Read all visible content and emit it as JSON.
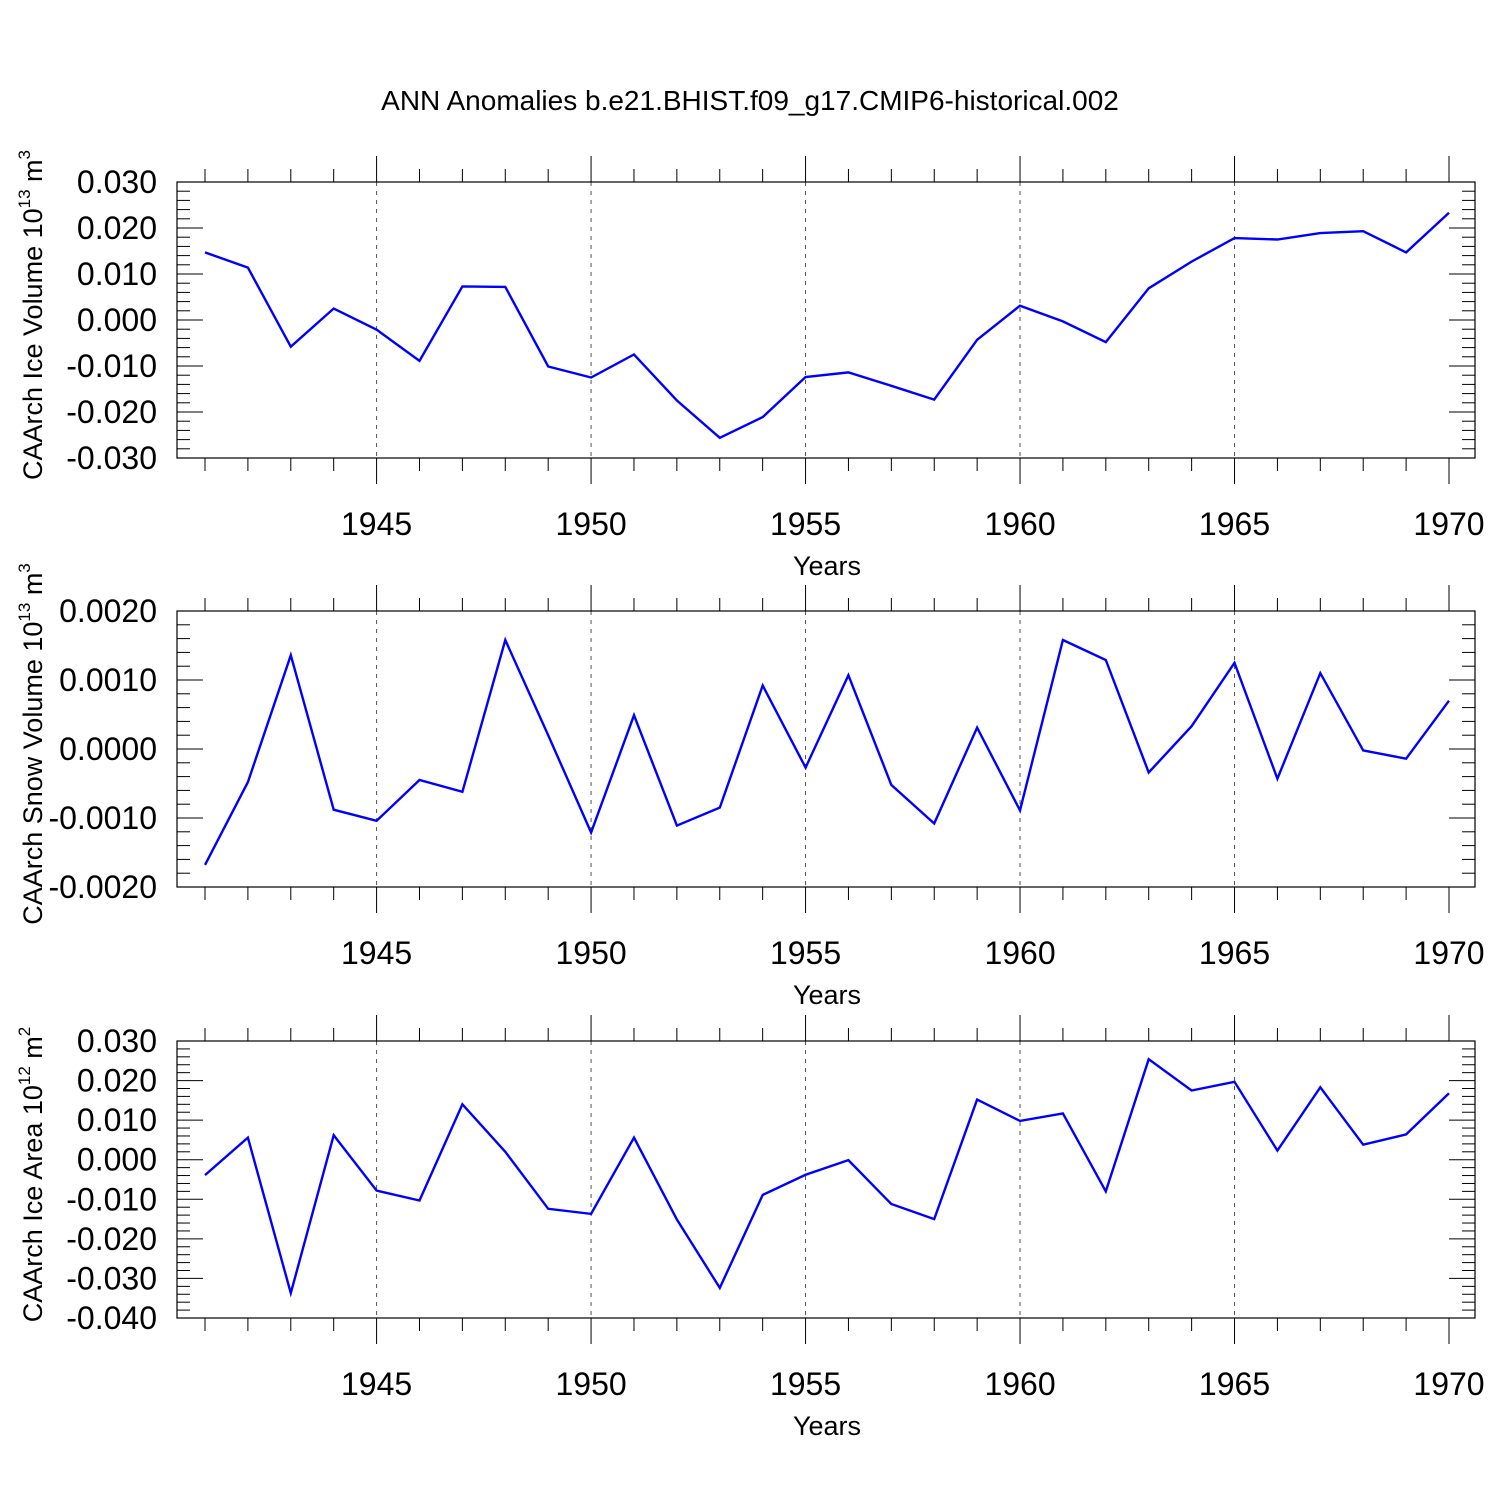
{
  "title": "ANN Anomalies b.e21.BHIST.f09_g17.CMIP6-historical.002",
  "colors": {
    "line": "#0000ff",
    "axis": "#000000",
    "grid": "#555555"
  },
  "chart_data": [
    {
      "type": "line",
      "name": "ice-volume",
      "ylabel_main": "CAArch Ice Volume 10",
      "ylabel_exp": "13",
      "ylabel_unit": " m",
      "ylabel_unit_exp": "3",
      "xlabel": "Years",
      "xlim": [
        1941,
        1970
      ],
      "ylim": [
        -0.03,
        0.03
      ],
      "yticks": [
        -0.03,
        -0.02,
        -0.01,
        0.0,
        0.01,
        0.02,
        0.03
      ],
      "ytick_labels": [
        "-0.030",
        "-0.020",
        "-0.010",
        "0.000",
        "0.010",
        "0.020",
        "0.030"
      ],
      "xticks": [
        1945,
        1950,
        1955,
        1960,
        1965,
        1970
      ],
      "xtick_labels": [
        "1945",
        "1950",
        "1955",
        "1960",
        "1965",
        "1970"
      ],
      "grid": "vertical dashed at major x ticks",
      "x": [
        1941,
        1942,
        1943,
        1944,
        1945,
        1946,
        1947,
        1948,
        1949,
        1950,
        1951,
        1952,
        1953,
        1954,
        1955,
        1956,
        1957,
        1958,
        1959,
        1960,
        1961,
        1962,
        1963,
        1964,
        1965,
        1966,
        1967,
        1968,
        1969,
        1970
      ],
      "values": [
        0.0147,
        0.0114,
        -0.0058,
        0.0025,
        -0.0021,
        -0.0089,
        0.0073,
        0.0072,
        -0.0101,
        -0.0125,
        -0.0075,
        -0.0175,
        -0.0256,
        -0.0211,
        -0.0124,
        -0.0114,
        -0.0143,
        -0.0173,
        -0.0043,
        0.0031,
        -0.0003,
        -0.0048,
        0.0069,
        0.0127,
        0.0178,
        0.0175,
        0.0189,
        0.0193,
        0.0147,
        0.0233
      ]
    },
    {
      "type": "line",
      "name": "snow-volume",
      "ylabel_main": "CAArch Snow Volume 10",
      "ylabel_exp": "13",
      "ylabel_unit": " m",
      "ylabel_unit_exp": "3",
      "xlabel": "Years",
      "xlim": [
        1941,
        1970
      ],
      "ylim": [
        -0.002,
        0.002
      ],
      "yticks": [
        -0.002,
        -0.001,
        0.0,
        0.001,
        0.002
      ],
      "ytick_labels": [
        "-0.0020",
        "-0.0010",
        "0.0000",
        "0.0010",
        "0.0020"
      ],
      "xticks": [
        1945,
        1950,
        1955,
        1960,
        1965,
        1970
      ],
      "xtick_labels": [
        "1945",
        "1950",
        "1955",
        "1960",
        "1965",
        "1970"
      ],
      "grid": "vertical dashed at major x ticks",
      "x": [
        1941,
        1942,
        1943,
        1944,
        1945,
        1946,
        1947,
        1948,
        1949,
        1950,
        1951,
        1952,
        1953,
        1954,
        1955,
        1956,
        1957,
        1958,
        1959,
        1960,
        1961,
        1962,
        1963,
        1964,
        1965,
        1966,
        1967,
        1968,
        1969,
        1970
      ],
      "values": [
        -0.00168,
        -0.00048,
        0.00136,
        -0.00088,
        -0.00104,
        -0.00045,
        -0.00062,
        0.00158,
        0.0002,
        -0.00121,
        0.00049,
        -0.00111,
        -0.00085,
        0.00092,
        -0.00027,
        0.00107,
        -0.00052,
        -0.00108,
        0.00031,
        -0.00089,
        0.00158,
        0.00129,
        -0.00034,
        0.00033,
        0.00125,
        -0.00043,
        0.0011,
        -2e-05,
        -0.00014,
        0.0007
      ]
    },
    {
      "type": "line",
      "name": "ice-area",
      "ylabel_main": "CAArch Ice Area 10",
      "ylabel_exp": "12",
      "ylabel_unit": " m",
      "ylabel_unit_exp": "2",
      "xlabel": "Years",
      "xlim": [
        1941,
        1970
      ],
      "ylim": [
        -0.04,
        0.03
      ],
      "yticks": [
        -0.04,
        -0.03,
        -0.02,
        -0.01,
        0.0,
        0.01,
        0.02,
        0.03
      ],
      "ytick_labels": [
        "-0.040",
        "-0.030",
        "-0.020",
        "-0.010",
        "0.000",
        "0.010",
        "0.020",
        "0.030"
      ],
      "xticks": [
        1945,
        1950,
        1955,
        1960,
        1965,
        1970
      ],
      "xtick_labels": [
        "1945",
        "1950",
        "1955",
        "1960",
        "1965",
        "1970"
      ],
      "grid": "vertical dashed at major x ticks",
      "x": [
        1941,
        1942,
        1943,
        1944,
        1945,
        1946,
        1947,
        1948,
        1949,
        1950,
        1951,
        1952,
        1953,
        1954,
        1955,
        1956,
        1957,
        1958,
        1959,
        1960,
        1961,
        1962,
        1963,
        1964,
        1965,
        1966,
        1967,
        1968,
        1969,
        1970
      ],
      "values": [
        -0.0039,
        0.0056,
        -0.0337,
        0.0062,
        -0.0078,
        -0.0103,
        0.014,
        0.002,
        -0.0124,
        -0.0137,
        0.0056,
        -0.0151,
        -0.0324,
        -0.0089,
        -0.0038,
        -0.0001,
        -0.0112,
        -0.015,
        0.0152,
        0.0098,
        0.0117,
        -0.008,
        0.0254,
        0.0175,
        0.0197,
        0.0023,
        0.0183,
        0.0038,
        0.0064,
        0.0168
      ]
    }
  ]
}
